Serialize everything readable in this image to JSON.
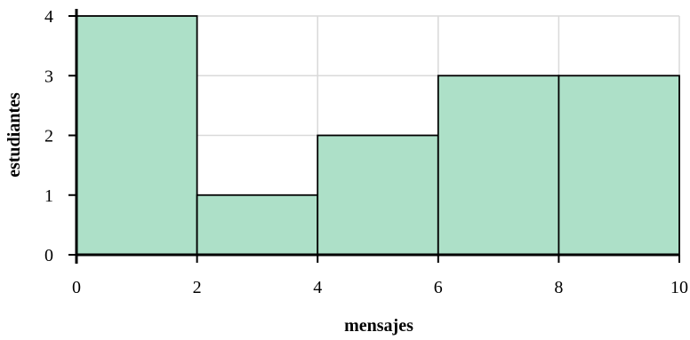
{
  "chart_data": {
    "type": "bar",
    "bins": [
      [
        0,
        2
      ],
      [
        2,
        4
      ],
      [
        4,
        6
      ],
      [
        6,
        8
      ],
      [
        8,
        10
      ]
    ],
    "values": [
      4,
      1,
      2,
      3,
      3
    ],
    "xlabel": "mensajes",
    "ylabel": "estudiantes",
    "xlim": [
      0,
      10
    ],
    "ylim": [
      0,
      4
    ],
    "x_ticks": [
      "0",
      "2",
      "4",
      "6",
      "8",
      "10"
    ],
    "y_ticks": [
      "0",
      "1",
      "2",
      "3",
      "4"
    ],
    "grid": true,
    "bar_color": "#ade0c8",
    "bar_edge_color": "#000000",
    "grid_color": "#d9d9d9"
  }
}
